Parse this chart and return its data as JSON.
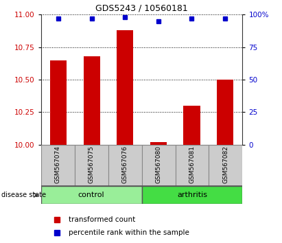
{
  "title": "GDS5243 / 10560181",
  "samples": [
    "GSM567074",
    "GSM567075",
    "GSM567076",
    "GSM567080",
    "GSM567081",
    "GSM567082"
  ],
  "bar_values": [
    10.65,
    10.68,
    10.88,
    10.02,
    10.3,
    10.5
  ],
  "percentile_values": [
    97,
    97,
    98,
    95,
    97,
    97
  ],
  "ylim_left": [
    10,
    11
  ],
  "ylim_right": [
    0,
    100
  ],
  "yticks_left": [
    10,
    10.25,
    10.5,
    10.75,
    11
  ],
  "yticks_right": [
    0,
    25,
    50,
    75,
    100
  ],
  "bar_color": "#cc0000",
  "dot_color": "#0000cc",
  "control_color": "#99ee99",
  "arthritis_color": "#44dd44",
  "label_bg_color": "#cccccc",
  "disease_label": "disease state",
  "legend_bar_label": "transformed count",
  "legend_dot_label": "percentile rank within the sample",
  "bar_width": 0.5,
  "title_fontsize": 9,
  "tick_fontsize": 7.5,
  "sample_fontsize": 6.5,
  "label_fontsize": 8,
  "legend_fontsize": 7.5
}
